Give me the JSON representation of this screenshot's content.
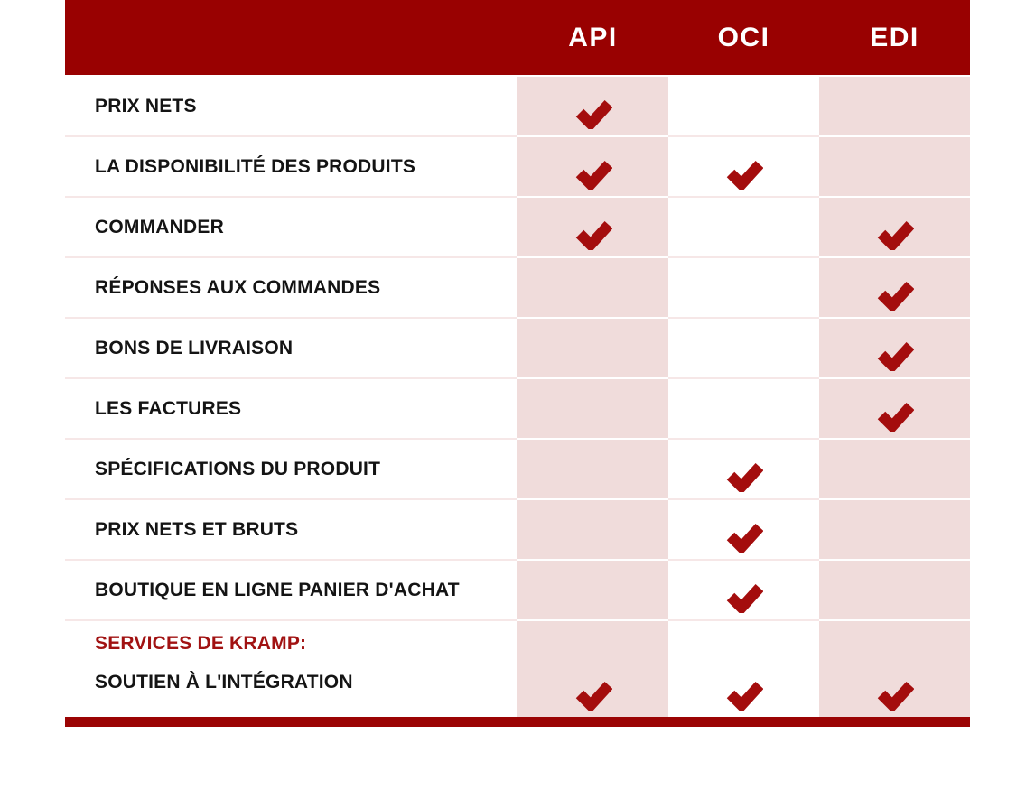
{
  "colors": {
    "header_bg": "#990101",
    "header_text": "#FFFFFF",
    "pink_column": "#F0DCDB",
    "check": "#A40D0D",
    "accent_bar": "#9B0404",
    "label_text": "#141414",
    "services_red": "#A11212",
    "row_divider": "#F6E7E7"
  },
  "icons": {
    "check": "check-icon"
  },
  "chart_data": {
    "type": "table",
    "title": "",
    "columns": [
      "API",
      "OCI",
      "EDI"
    ],
    "highlighted_columns": [
      "API",
      "EDI"
    ],
    "rows": [
      {
        "label": "PRIX NETS",
        "API": true,
        "OCI": false,
        "EDI": false
      },
      {
        "label": "LA DISPONIBILITÉ DES PRODUITS",
        "API": true,
        "OCI": true,
        "EDI": false
      },
      {
        "label": "COMMANDER",
        "API": true,
        "OCI": false,
        "EDI": true
      },
      {
        "label": "RÉPONSES AUX COMMANDES",
        "API": false,
        "OCI": false,
        "EDI": true
      },
      {
        "label": "BONS DE LIVRAISON",
        "API": false,
        "OCI": false,
        "EDI": true
      },
      {
        "label": "LES FACTURES",
        "API": false,
        "OCI": false,
        "EDI": true
      },
      {
        "label": "SPÉCIFICATIONS DU PRODUIT",
        "API": false,
        "OCI": true,
        "EDI": false
      },
      {
        "label": "PRIX NETS ET BRUTS",
        "API": false,
        "OCI": true,
        "EDI": false
      },
      {
        "label": "BOUTIQUE EN LIGNE PANIER D'ACHAT",
        "API": false,
        "OCI": true,
        "EDI": false
      },
      {
        "label": "SERVICES DE KRAMP:",
        "label2": "SOUTIEN À L'INTÉGRATION",
        "API": true,
        "OCI": true,
        "EDI": true,
        "tall": true
      }
    ]
  }
}
